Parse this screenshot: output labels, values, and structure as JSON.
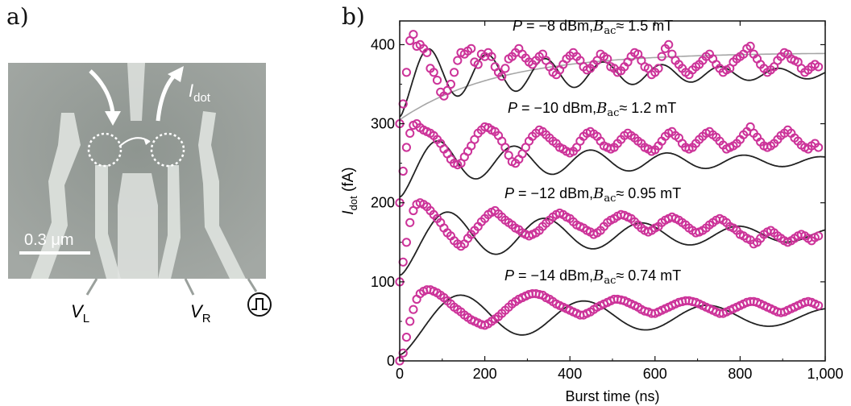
{
  "panel_a": {
    "label": "a)",
    "scale_bar": "0.3 μm",
    "i_dot": {
      "main": "I",
      "sub": "dot"
    },
    "v_left": {
      "main": "V",
      "sub": "L"
    },
    "v_right": {
      "main": "V",
      "sub": "R"
    },
    "colors": {
      "image_bg": "#9aa09c",
      "gate": "#dfe3df",
      "arrow": "#ffffff"
    },
    "icon": "pulse-generator-icon"
  },
  "panel_b": {
    "label": "b)"
  },
  "chart_data": {
    "type": "scatter",
    "xlabel": "Burst time (ns)",
    "ylabel": {
      "main": "I",
      "sub": "dot",
      "unit": " (fA)"
    },
    "xlim": [
      0,
      1000
    ],
    "ylim": [
      0,
      430
    ],
    "xticks": [
      0,
      200,
      400,
      600,
      800,
      1000
    ],
    "xtick_labels": [
      "0",
      "200",
      "400",
      "600",
      "800",
      "1,000"
    ],
    "yticks": [
      0,
      100,
      200,
      300,
      400
    ],
    "ytick_labels": [
      "0",
      "100",
      "200",
      "300",
      "400"
    ],
    "grid": false,
    "colors": {
      "points": "#cc3399",
      "fit": "#222222",
      "envelope": "#a6a6a6"
    },
    "series": [
      {
        "name": "P = −8 dBm, Bac ≈ 1.5 mT",
        "label": {
          "p": "P = −8 dBm,",
          "b": "B",
          "bsub": "ac",
          "val": "≈ 1.5 mT"
        },
        "offset": 300,
        "fit": {
          "amp": 90,
          "period": 137,
          "tau": 550,
          "rise": 10
        },
        "envelope": {
          "start": 305,
          "end": 390,
          "tau": 230
        },
        "x": [
          0,
          8,
          16,
          24,
          32,
          40,
          48,
          56,
          64,
          72,
          80,
          88,
          96,
          104,
          112,
          120,
          128,
          136,
          144,
          152,
          160,
          168,
          176,
          184,
          192,
          200,
          208,
          216,
          224,
          232,
          240,
          248,
          256,
          264,
          272,
          280,
          288,
          296,
          304,
          312,
          320,
          328,
          336,
          344,
          352,
          360,
          368,
          376,
          384,
          392,
          400,
          408,
          416,
          424,
          432,
          440,
          448,
          456,
          464,
          472,
          480,
          488,
          496,
          504,
          512,
          520,
          528,
          536,
          544,
          552,
          560,
          568,
          576,
          584,
          592,
          600,
          608,
          616,
          624,
          632,
          640,
          648,
          656,
          664,
          672,
          680,
          688,
          696,
          704,
          712,
          720,
          728,
          736,
          744,
          752,
          760,
          768,
          776,
          784,
          792,
          800,
          808,
          816,
          824,
          832,
          840,
          848,
          856,
          864,
          872,
          880,
          888,
          896,
          904,
          912,
          920,
          928,
          936,
          944,
          952,
          960,
          968,
          976,
          984
        ],
        "y": [
          300,
          325,
          365,
          405,
          413,
          398,
          400,
          395,
          390,
          370,
          365,
          355,
          340,
          335,
          342,
          350,
          365,
          380,
          390,
          388,
          392,
          395,
          378,
          375,
          388,
          385,
          390,
          385,
          372,
          365,
          360,
          370,
          382,
          385,
          390,
          395,
          388,
          383,
          378,
          375,
          380,
          385,
          388,
          380,
          372,
          365,
          362,
          368,
          375,
          382,
          386,
          390,
          385,
          380,
          372,
          368,
          370,
          375,
          380,
          388,
          385,
          382,
          372,
          370,
          365,
          367,
          372,
          378,
          385,
          390,
          388,
          380,
          372,
          370,
          362,
          365,
          370,
          385,
          395,
          400,
          388,
          380,
          375,
          370,
          365,
          362,
          368,
          372,
          375,
          380,
          385,
          388,
          382,
          375,
          370,
          365,
          368,
          370,
          378,
          382,
          385,
          388,
          395,
          398,
          388,
          382,
          375,
          370,
          365,
          368,
          372,
          380,
          385,
          390,
          388,
          382,
          380,
          378,
          370,
          365,
          368,
          372,
          375,
          372
        ]
      },
      {
        "name": "P = −10 dBm, Bac ≈ 1.2 mT",
        "label": {
          "p": "P = −10 dBm,",
          "b": "B",
          "bsub": "ac",
          "val": "≈ 1.2 mT"
        },
        "offset": 200,
        "fit": {
          "amp": 75,
          "period": 180,
          "tau": 600,
          "rise": 14
        },
        "x": [
          0,
          8,
          16,
          24,
          32,
          40,
          48,
          56,
          64,
          72,
          80,
          88,
          96,
          104,
          112,
          120,
          128,
          136,
          144,
          152,
          160,
          168,
          176,
          184,
          192,
          200,
          208,
          216,
          224,
          232,
          240,
          248,
          256,
          264,
          272,
          280,
          288,
          296,
          304,
          312,
          320,
          328,
          336,
          344,
          352,
          360,
          368,
          376,
          384,
          392,
          400,
          408,
          416,
          424,
          432,
          440,
          448,
          456,
          464,
          472,
          480,
          488,
          496,
          504,
          512,
          520,
          528,
          536,
          544,
          552,
          560,
          568,
          576,
          584,
          592,
          600,
          608,
          616,
          624,
          632,
          640,
          648,
          656,
          664,
          672,
          680,
          688,
          696,
          704,
          712,
          720,
          728,
          736,
          744,
          752,
          760,
          768,
          776,
          784,
          792,
          800,
          808,
          816,
          824,
          832,
          840,
          848,
          856,
          864,
          872,
          880,
          888,
          896,
          904,
          912,
          920,
          928,
          936,
          944,
          952,
          960,
          968,
          976,
          984
        ],
        "y": [
          200,
          240,
          270,
          288,
          298,
          300,
          295,
          292,
          290,
          288,
          285,
          280,
          275,
          268,
          262,
          255,
          250,
          248,
          250,
          258,
          265,
          272,
          280,
          288,
          292,
          296,
          295,
          292,
          290,
          285,
          278,
          270,
          260,
          252,
          250,
          255,
          262,
          270,
          278,
          284,
          288,
          292,
          290,
          286,
          282,
          278,
          275,
          270,
          268,
          265,
          263,
          265,
          270,
          278,
          284,
          288,
          290,
          287,
          284,
          278,
          272,
          270,
          268,
          270,
          275,
          280,
          285,
          288,
          285,
          282,
          278,
          275,
          270,
          268,
          265,
          267,
          272,
          278,
          284,
          288,
          290,
          285,
          282,
          275,
          270,
          268,
          270,
          275,
          280,
          284,
          288,
          290,
          286,
          283,
          278,
          273,
          268,
          270,
          272,
          275,
          280,
          286,
          290,
          296,
          288,
          283,
          277,
          272,
          270,
          272,
          275,
          280,
          285,
          288,
          292,
          288,
          282,
          278,
          273,
          270,
          268,
          272,
          275,
          270
        ]
      },
      {
        "name": "P = −12 dBm, Bac ≈ 0.95 mT",
        "label": {
          "p": "P = −12 dBm,",
          "b": "B",
          "bsub": "ac",
          "val": "≈ 0.95 mT"
        },
        "offset": 100,
        "fit": {
          "amp": 85,
          "period": 228,
          "tau": 700,
          "rise": 18
        },
        "x": [
          0,
          8,
          16,
          24,
          32,
          40,
          48,
          56,
          64,
          72,
          80,
          88,
          96,
          104,
          112,
          120,
          128,
          136,
          144,
          152,
          160,
          168,
          176,
          184,
          192,
          200,
          208,
          216,
          224,
          232,
          240,
          248,
          256,
          264,
          272,
          280,
          288,
          296,
          304,
          312,
          320,
          328,
          336,
          344,
          352,
          360,
          368,
          376,
          384,
          392,
          400,
          408,
          416,
          424,
          432,
          440,
          448,
          456,
          464,
          472,
          480,
          488,
          496,
          504,
          512,
          520,
          528,
          536,
          544,
          552,
          560,
          568,
          576,
          584,
          592,
          600,
          608,
          616,
          624,
          632,
          640,
          648,
          656,
          664,
          672,
          680,
          688,
          696,
          704,
          712,
          720,
          728,
          736,
          744,
          752,
          760,
          768,
          776,
          784,
          792,
          800,
          808,
          816,
          824,
          832,
          840,
          848,
          856,
          864,
          872,
          880,
          888,
          896,
          904,
          912,
          920,
          928,
          936,
          944,
          952,
          960,
          968,
          976,
          984
        ],
        "y": [
          100,
          125,
          150,
          175,
          190,
          198,
          200,
          198,
          195,
          190,
          185,
          180,
          175,
          168,
          162,
          158,
          152,
          148,
          145,
          148,
          155,
          160,
          165,
          170,
          176,
          180,
          185,
          188,
          190,
          186,
          182,
          178,
          175,
          172,
          168,
          166,
          162,
          160,
          158,
          160,
          162,
          165,
          170,
          174,
          178,
          182,
          185,
          187,
          185,
          182,
          180,
          176,
          172,
          170,
          168,
          165,
          163,
          160,
          162,
          165,
          170,
          175,
          178,
          180,
          183,
          185,
          184,
          182,
          180,
          176,
          172,
          168,
          165,
          163,
          165,
          168,
          170,
          175,
          178,
          180,
          182,
          180,
          178,
          175,
          172,
          168,
          165,
          162,
          163,
          165,
          168,
          172,
          175,
          178,
          180,
          178,
          175,
          170,
          168,
          165,
          160,
          158,
          155,
          153,
          148,
          150,
          155,
          160,
          163,
          165,
          162,
          158,
          155,
          152,
          150,
          152,
          155,
          158,
          160,
          158,
          155,
          152,
          156,
          158
        ]
      },
      {
        "name": "P = −14 dBm, Bac ≈ 0.74 mT",
        "label": {
          "p": "P = −14 dBm,",
          "b": "B",
          "bsub": "ac",
          "val": "≈ 0.74 mT"
        },
        "offset": 0,
        "fit": {
          "amp": 80,
          "period": 290,
          "tau": 900,
          "rise": 22
        },
        "x": [
          0,
          8,
          16,
          24,
          32,
          40,
          48,
          56,
          64,
          72,
          80,
          88,
          96,
          104,
          112,
          120,
          128,
          136,
          144,
          152,
          160,
          168,
          176,
          184,
          192,
          200,
          208,
          216,
          224,
          232,
          240,
          248,
          256,
          264,
          272,
          280,
          288,
          296,
          304,
          312,
          320,
          328,
          336,
          344,
          352,
          360,
          368,
          376,
          384,
          392,
          400,
          408,
          416,
          424,
          432,
          440,
          448,
          456,
          464,
          472,
          480,
          488,
          496,
          504,
          512,
          520,
          528,
          536,
          544,
          552,
          560,
          568,
          576,
          584,
          592,
          600,
          608,
          616,
          624,
          632,
          640,
          648,
          656,
          664,
          672,
          680,
          688,
          696,
          704,
          712,
          720,
          728,
          736,
          744,
          752,
          760,
          768,
          776,
          784,
          792,
          800,
          808,
          816,
          824,
          832,
          840,
          848,
          856,
          864,
          872,
          880,
          888,
          896,
          904,
          912,
          920,
          928,
          936,
          944,
          952,
          960,
          968,
          976,
          984
        ],
        "y": [
          0,
          10,
          30,
          50,
          65,
          78,
          85,
          88,
          90,
          90,
          88,
          86,
          83,
          80,
          76,
          72,
          68,
          65,
          62,
          58,
          55,
          52,
          50,
          48,
          46,
          45,
          47,
          50,
          53,
          56,
          60,
          64,
          68,
          72,
          75,
          78,
          80,
          82,
          84,
          85,
          85,
          84,
          83,
          80,
          78,
          75,
          72,
          70,
          68,
          66,
          64,
          62,
          60,
          58,
          58,
          60,
          62,
          65,
          68,
          70,
          72,
          74,
          76,
          78,
          78,
          77,
          76,
          74,
          72,
          70,
          68,
          65,
          63,
          62,
          60,
          60,
          62,
          64,
          66,
          68,
          70,
          72,
          74,
          75,
          76,
          76,
          75,
          74,
          72,
          70,
          68,
          66,
          64,
          62,
          60,
          60,
          62,
          64,
          66,
          68,
          70,
          72,
          74,
          75,
          75,
          74,
          72,
          70,
          68,
          66,
          64,
          62,
          61,
          62,
          64,
          66,
          68,
          70,
          72,
          74,
          75,
          74,
          72,
          70
        ]
      }
    ]
  }
}
